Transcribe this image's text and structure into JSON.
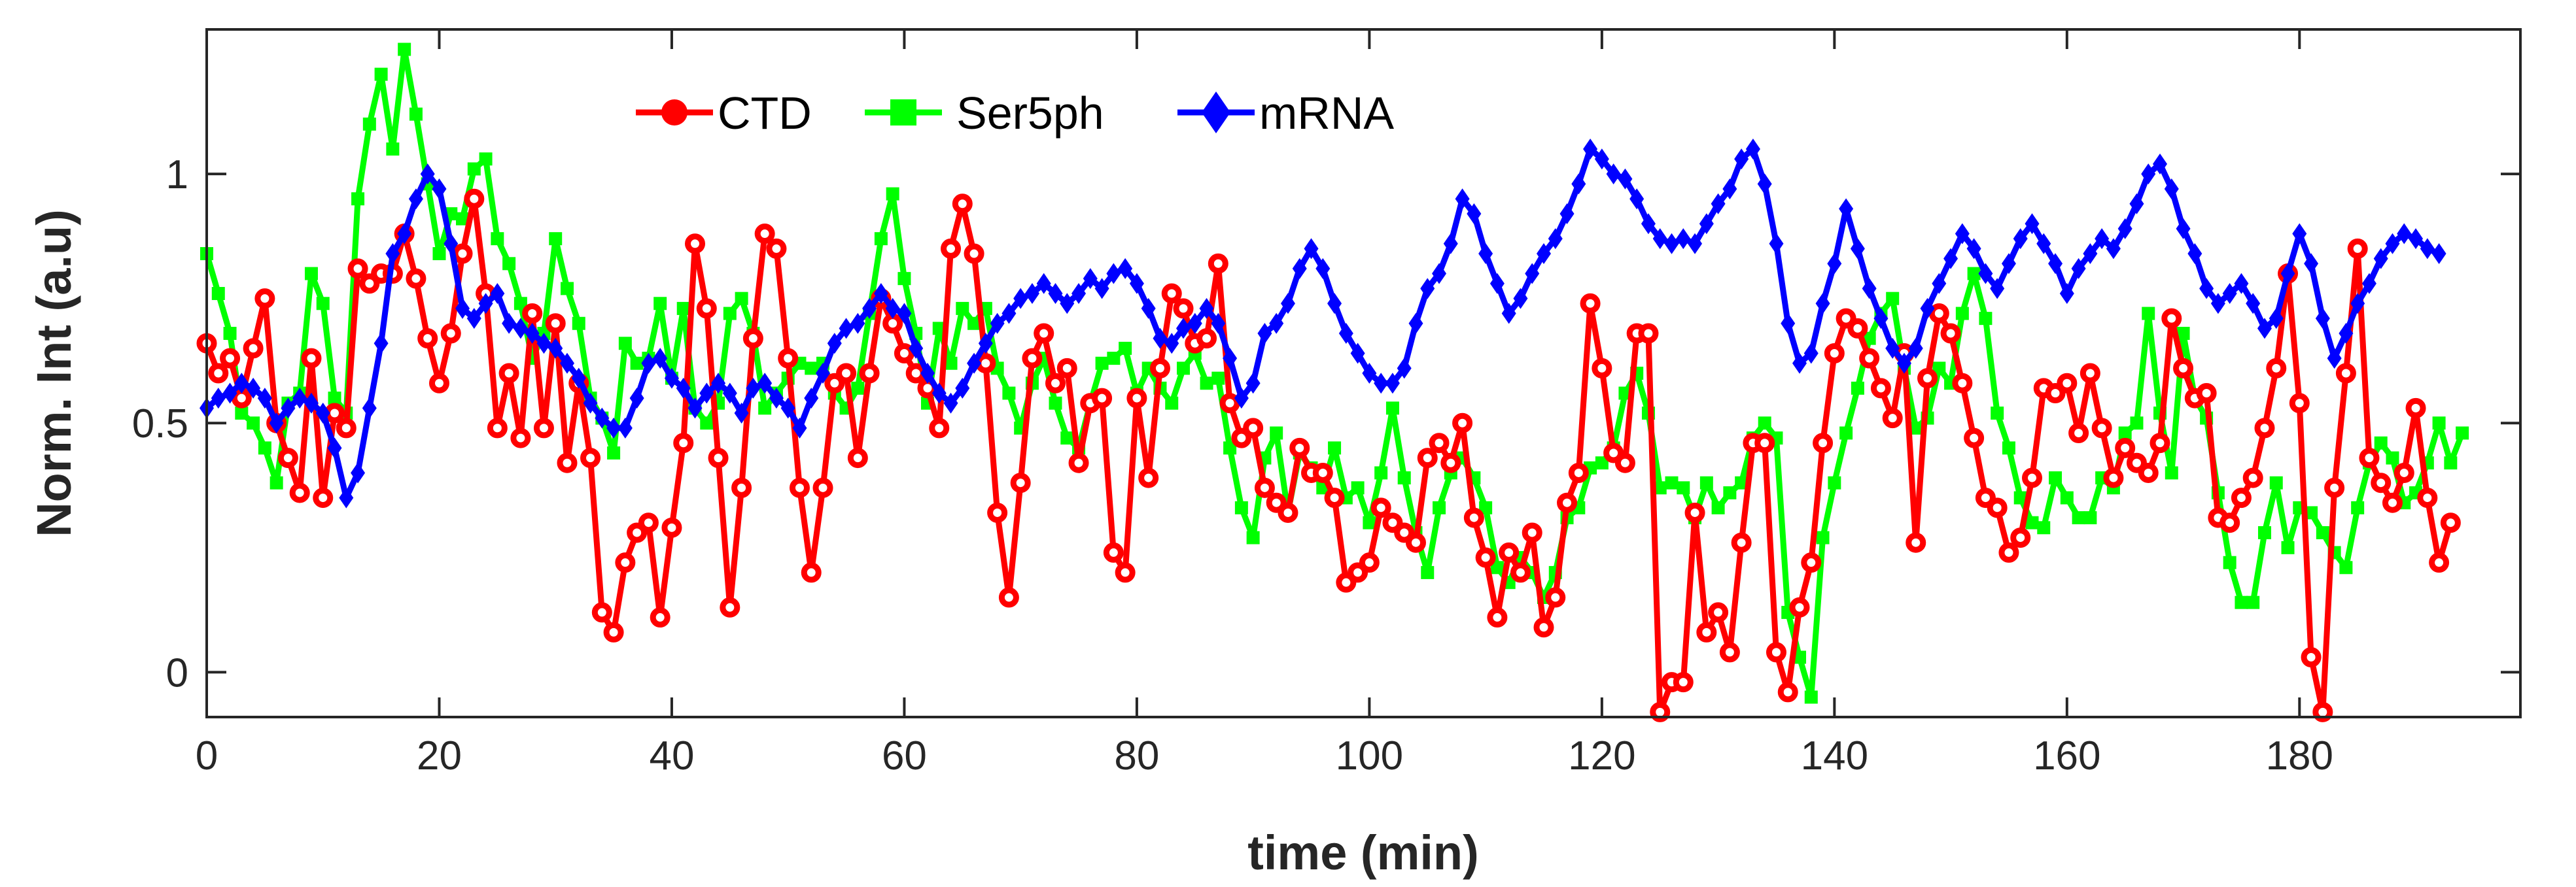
{
  "chart_data": {
    "type": "line",
    "title": "",
    "xlabel": "time (min)",
    "ylabel": "Norm. Int (a.u)",
    "xlim": [
      0,
      199
    ],
    "ylim": [
      -0.09,
      1.29
    ],
    "xticks": [
      0,
      20,
      40,
      60,
      80,
      100,
      120,
      140,
      160,
      180
    ],
    "xtick_labels": [
      "0",
      "20",
      "40",
      "60",
      "80",
      "100",
      "120",
      "140",
      "160",
      "180"
    ],
    "yticks": [
      0,
      0.5,
      1
    ],
    "ytick_labels": [
      "0",
      "0.5",
      "1"
    ],
    "grid": false,
    "legend_placement": "top-center",
    "x_step": 1,
    "series": [
      {
        "name": "CTD",
        "color": "#ff0000",
        "marker": "circle",
        "values": [
          0.66,
          0.6,
          0.63,
          0.55,
          0.65,
          0.75,
          0.5,
          0.43,
          0.36,
          0.63,
          0.35,
          0.52,
          0.49,
          0.81,
          0.78,
          0.8,
          0.8,
          0.88,
          0.79,
          0.67,
          0.58,
          0.68,
          0.84,
          0.95,
          0.76,
          0.49,
          0.6,
          0.47,
          0.72,
          0.49,
          0.7,
          0.42,
          0.58,
          0.43,
          0.12,
          0.08,
          0.22,
          0.28,
          0.3,
          0.11,
          0.29,
          0.46,
          0.86,
          0.73,
          0.43,
          0.13,
          0.37,
          0.67,
          0.88,
          0.85,
          0.63,
          0.37,
          0.2,
          0.37,
          0.58,
          0.6,
          0.43,
          0.6,
          0.75,
          0.7,
          0.64,
          0.6,
          0.57,
          0.49,
          0.85,
          0.94,
          0.84,
          0.62,
          0.32,
          0.15,
          0.38,
          0.63,
          0.68,
          0.58,
          0.61,
          0.42,
          0.54,
          0.55,
          0.24,
          0.2,
          0.55,
          0.39,
          0.61,
          0.76,
          0.73,
          0.66,
          0.67,
          0.82,
          0.54,
          0.47,
          0.49,
          0.37,
          0.34,
          0.32,
          0.45,
          0.4,
          0.4,
          0.35,
          0.18,
          0.2,
          0.22,
          0.33,
          0.3,
          0.28,
          0.26,
          0.43,
          0.46,
          0.42,
          0.5,
          0.31,
          0.23,
          0.11,
          0.24,
          0.2,
          0.28,
          0.09,
          0.15,
          0.34,
          0.4,
          0.74,
          0.61,
          0.44,
          0.42,
          0.68,
          0.68,
          -0.08,
          -0.02,
          -0.02,
          0.32,
          0.08,
          0.12,
          0.04,
          0.26,
          0.46,
          0.46,
          0.04,
          -0.04,
          0.13,
          0.22,
          0.46,
          0.64,
          0.71,
          0.69,
          0.63,
          0.57,
          0.51,
          0.64,
          0.26,
          0.59,
          0.72,
          0.68,
          0.58,
          0.47,
          0.35,
          0.33,
          0.24,
          0.27,
          0.39,
          0.57,
          0.56,
          0.58,
          0.48,
          0.6,
          0.49,
          0.39,
          0.45,
          0.42,
          0.4,
          0.46,
          0.71,
          0.61,
          0.55,
          0.56,
          0.31,
          0.3,
          0.35,
          0.39,
          0.49,
          0.61,
          0.8,
          0.54,
          0.03,
          -0.08,
          0.37,
          0.6,
          0.85,
          0.43,
          0.38,
          0.34,
          0.4,
          0.53,
          0.35,
          0.22,
          0.3
        ]
      },
      {
        "name": "Ser5ph",
        "color": "#00ff00",
        "marker": "square",
        "values": [
          0.84,
          0.76,
          0.68,
          0.52,
          0.5,
          0.45,
          0.38,
          0.54,
          0.56,
          0.8,
          0.74,
          0.55,
          0.52,
          0.95,
          1.1,
          1.2,
          1.05,
          1.25,
          1.12,
          0.98,
          0.84,
          0.92,
          0.91,
          1.01,
          1.03,
          0.87,
          0.82,
          0.74,
          0.63,
          0.68,
          0.87,
          0.77,
          0.7,
          0.55,
          0.51,
          0.44,
          0.66,
          0.62,
          0.63,
          0.74,
          0.59,
          0.73,
          0.53,
          0.5,
          0.54,
          0.72,
          0.75,
          0.68,
          0.53,
          0.56,
          0.59,
          0.62,
          0.61,
          0.62,
          0.56,
          0.53,
          0.57,
          0.72,
          0.87,
          0.96,
          0.79,
          0.68,
          0.54,
          0.69,
          0.62,
          0.73,
          0.7,
          0.73,
          0.61,
          0.56,
          0.49,
          0.58,
          0.63,
          0.54,
          0.47,
          0.45,
          0.54,
          0.62,
          0.63,
          0.65,
          0.56,
          0.61,
          0.57,
          0.54,
          0.61,
          0.64,
          0.58,
          0.59,
          0.45,
          0.33,
          0.27,
          0.43,
          0.48,
          0.32,
          0.44,
          0.41,
          0.37,
          0.45,
          0.35,
          0.37,
          0.3,
          0.4,
          0.53,
          0.39,
          0.28,
          0.2,
          0.33,
          0.4,
          0.43,
          0.39,
          0.33,
          0.21,
          0.18,
          0.23,
          0.2,
          0.15,
          0.2,
          0.31,
          0.33,
          0.41,
          0.42,
          0.45,
          0.56,
          0.6,
          0.52,
          0.37,
          0.38,
          0.37,
          0.31,
          0.38,
          0.33,
          0.36,
          0.38,
          0.47,
          0.5,
          0.47,
          0.12,
          0.03,
          -0.05,
          0.27,
          0.38,
          0.48,
          0.57,
          0.67,
          0.72,
          0.75,
          0.61,
          0.49,
          0.51,
          0.61,
          0.58,
          0.72,
          0.8,
          0.71,
          0.52,
          0.45,
          0.35,
          0.3,
          0.29,
          0.39,
          0.35,
          0.31,
          0.31,
          0.39,
          0.37,
          0.48,
          0.5,
          0.72,
          0.52,
          0.4,
          0.68,
          0.55,
          0.51,
          0.36,
          0.22,
          0.14,
          0.14,
          0.28,
          0.38,
          0.25,
          0.33,
          0.32,
          0.28,
          0.24,
          0.21,
          0.33,
          0.42,
          0.46,
          0.43,
          0.34,
          0.36,
          0.42,
          0.5,
          0.42,
          0.48
        ]
      },
      {
        "name": "mRNA",
        "color": "#0000ff",
        "marker": "diamond",
        "values": [
          0.53,
          0.55,
          0.56,
          0.58,
          0.57,
          0.55,
          0.5,
          0.53,
          0.55,
          0.54,
          0.52,
          0.45,
          0.35,
          0.4,
          0.53,
          0.66,
          0.84,
          0.88,
          0.95,
          1.0,
          0.97,
          0.86,
          0.73,
          0.71,
          0.74,
          0.76,
          0.7,
          0.69,
          0.68,
          0.66,
          0.65,
          0.62,
          0.59,
          0.54,
          0.51,
          0.49,
          0.49,
          0.55,
          0.62,
          0.63,
          0.59,
          0.57,
          0.53,
          0.56,
          0.58,
          0.56,
          0.52,
          0.57,
          0.58,
          0.55,
          0.53,
          0.49,
          0.55,
          0.6,
          0.66,
          0.69,
          0.7,
          0.73,
          0.76,
          0.73,
          0.72,
          0.65,
          0.6,
          0.56,
          0.54,
          0.57,
          0.62,
          0.66,
          0.7,
          0.72,
          0.75,
          0.76,
          0.78,
          0.76,
          0.74,
          0.76,
          0.79,
          0.77,
          0.8,
          0.81,
          0.78,
          0.73,
          0.67,
          0.66,
          0.69,
          0.7,
          0.73,
          0.7,
          0.63,
          0.55,
          0.58,
          0.68,
          0.7,
          0.74,
          0.81,
          0.85,
          0.81,
          0.74,
          0.68,
          0.64,
          0.6,
          0.58,
          0.58,
          0.61,
          0.7,
          0.77,
          0.8,
          0.86,
          0.95,
          0.92,
          0.84,
          0.78,
          0.72,
          0.75,
          0.8,
          0.84,
          0.87,
          0.92,
          0.98,
          1.05,
          1.03,
          1.0,
          0.99,
          0.95,
          0.9,
          0.87,
          0.86,
          0.87,
          0.86,
          0.9,
          0.94,
          0.97,
          1.03,
          1.05,
          0.98,
          0.86,
          0.7,
          0.62,
          0.64,
          0.74,
          0.82,
          0.93,
          0.85,
          0.77,
          0.71,
          0.65,
          0.62,
          0.65,
          0.73,
          0.78,
          0.83,
          0.88,
          0.85,
          0.8,
          0.77,
          0.82,
          0.87,
          0.9,
          0.86,
          0.82,
          0.76,
          0.81,
          0.84,
          0.87,
          0.85,
          0.89,
          0.94,
          1.0,
          1.02,
          0.97,
          0.89,
          0.84,
          0.77,
          0.74,
          0.76,
          0.78,
          0.74,
          0.69,
          0.71,
          0.8,
          0.88,
          0.82,
          0.71,
          0.63,
          0.68,
          0.74,
          0.78,
          0.83,
          0.86,
          0.88,
          0.87,
          0.85,
          0.84
        ]
      }
    ]
  }
}
